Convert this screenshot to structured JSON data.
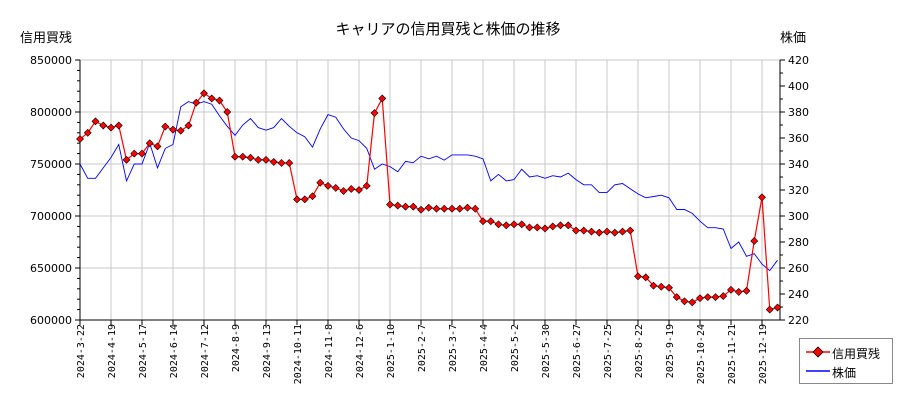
{
  "chart_data": {
    "type": "line",
    "title": "キャリアの信用買残と株価の推移",
    "ylabel_left": "信用買残",
    "ylabel_right": "株価",
    "ylim_left": [
      600000,
      850000
    ],
    "ylim_right": [
      220,
      420
    ],
    "yticks_left": [
      600000,
      650000,
      700000,
      750000,
      800000,
      850000
    ],
    "yticks_right": [
      220,
      240,
      260,
      280,
      300,
      320,
      340,
      360,
      380,
      400,
      420
    ],
    "xtick_labels": [
      "2024-3-22",
      "2024-4-19",
      "2024-5-17",
      "2024-6-14",
      "2024-7-12",
      "2024-8-9",
      "2024-9-13",
      "2024-10-11",
      "2024-11-8",
      "2024-12-6",
      "2025-1-10",
      "2025-2-7",
      "2025-3-7",
      "2025-4-4",
      "2025-5-2",
      "2025-5-30",
      "2025-6-27",
      "2025-7-25",
      "2025-8-22",
      "2025-9-19",
      "2025-10-24",
      "2025-11-21",
      "2025-12-19"
    ],
    "grid": true,
    "legend_position": "bottom-right outside",
    "series": [
      {
        "name": "信用買残",
        "color": "#ff0000",
        "marker": "diamond",
        "axis": "left",
        "values": [
          774000,
          780000,
          791000,
          787000,
          785000,
          787000,
          754000,
          760000,
          760000,
          770000,
          767000,
          786000,
          783000,
          782000,
          787000,
          809000,
          818000,
          813000,
          811000,
          800000,
          757000,
          757000,
          756000,
          754000,
          754000,
          752000,
          751000,
          751000,
          716000,
          716000,
          719000,
          732000,
          729000,
          727000,
          724000,
          726000,
          725000,
          729000,
          799000,
          813000,
          711000,
          710000,
          709000,
          709000,
          706000,
          708000,
          707000,
          707000,
          707000,
          707000,
          708000,
          707000,
          695000,
          695000,
          692000,
          691000,
          692000,
          692000,
          689000,
          689000,
          688000,
          690000,
          691000,
          691000,
          686000,
          686000,
          685000,
          684000,
          685000,
          684000,
          685000,
          686000,
          642000,
          641000,
          633000,
          632000,
          631000,
          622000,
          618000,
          617000,
          621000,
          622000,
          622000,
          623000,
          629000,
          627000,
          628000,
          676000,
          718000,
          610000,
          612000
        ]
      },
      {
        "name": "株価",
        "color": "#0000ff",
        "axis": "right",
        "values": [
          340,
          329,
          329,
          337,
          345,
          355,
          327,
          340,
          340,
          356,
          337,
          352,
          355,
          384,
          388,
          386,
          388,
          386,
          377,
          369,
          362,
          370,
          375,
          368,
          366,
          368,
          375,
          369,
          364,
          361,
          353,
          367,
          378,
          376,
          367,
          360,
          358,
          352,
          336,
          340,
          338,
          334,
          342,
          341,
          346,
          344,
          346,
          343,
          347,
          347,
          347,
          346,
          344,
          327,
          332,
          327,
          328,
          336,
          330,
          331,
          329,
          331,
          330,
          333,
          328,
          324,
          324,
          318,
          318,
          324,
          325,
          321,
          317,
          314,
          315,
          316,
          314,
          305,
          305,
          302,
          296,
          291,
          291,
          290,
          275,
          280,
          269,
          271,
          263,
          258,
          266
        ]
      }
    ]
  },
  "legend": {
    "items": [
      {
        "label": "信用買残",
        "color": "#ff0000"
      },
      {
        "label": "株価",
        "color": "#0000ff"
      }
    ]
  }
}
